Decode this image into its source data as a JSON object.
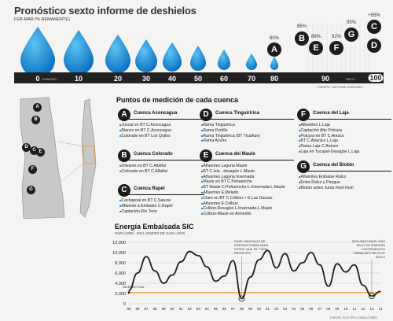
{
  "title": "Pronóstico sexto informe de deshielos",
  "subtitle": "FEB-MAR (% REMANENTE)",
  "scale": {
    "ticks": [
      "0",
      "10",
      "20",
      "30",
      "40",
      "50",
      "60",
      "70",
      "80",
      "90",
      "100"
    ],
    "left_note": "HUMEDO",
    "right_note": "SECO",
    "source": "FUENTE: INFORME EDEE/SEC"
  },
  "forecast_markers": [
    {
      "letter": "A",
      "pct": "80%"
    },
    {
      "letter": "B",
      "pct": "85%"
    },
    {
      "letter": "E",
      "pct": "88%"
    },
    {
      "letter": "F",
      "pct": "92%"
    },
    {
      "letter": "G",
      "pct": "95%"
    },
    {
      "letter": "C",
      "pct": "+95%"
    },
    {
      "letter": "D",
      "pct": ""
    }
  ],
  "map_labels": [
    "A",
    "B",
    "C",
    "D",
    "E",
    "F",
    "G"
  ],
  "points_title": "Puntos de medición de cada cuenca",
  "cuencas": [
    {
      "letter": "A",
      "name": "Cuenca Aconcagua",
      "items": [
        "Juncal en BT C.Aconcagua",
        "Blanco en BT C.Aconcagua",
        "Colorado en BT Los Quilos"
      ]
    },
    {
      "letter": "B",
      "name": "Cuenca Colorado",
      "items": [
        "Olivares en BT C.Alfalfal",
        "Colorado en BT C.Alfalfal"
      ]
    },
    {
      "letter": "C",
      "name": "Cuenca Rapel",
      "items": [
        "Cachapoal en BT C.Sauzal",
        "Afluente a Embalse C.Rapel",
        "Captación Río Teno"
      ]
    },
    {
      "letter": "D",
      "name": "Cuenca Tinguiririca",
      "items": [
        "Rama Tinguiririca",
        "Rama Portillo",
        "Rama Tinguiririca (BT Ticalhue)",
        "Rama Azufre"
      ]
    },
    {
      "letter": "E",
      "name": "Cuenca del Maule",
      "items": [
        "Afluentes Laguna Maule",
        "BT C.Isla - desagüe L.Maule",
        "Afluentes Laguna Invernada",
        "Maule en BT C.Pehuenche",
        "BT Maule C.Pehuenche-L.Invernada-L.Maule",
        "Afluentes E.Melado",
        "Claro en BT C.Colbún + E.Las Garzas",
        "Afluentes E.Colbún",
        "Colbún-Desagüe L.Invernada-L.Maule",
        "Colbún-Maule en Armerillo"
      ]
    },
    {
      "letter": "F",
      "name": "Cuenca del Laja",
      "items": [
        "Afluentes L.Laja",
        "Captación Alto Polcura",
        "Polcura en BT C.Antuco",
        "BT C.Abanico L.Laja",
        "Rama Laja C.Antuco",
        "Laja en Tucapel-Desagüe L.Laja"
      ]
    },
    {
      "letter": "G",
      "name": "Cuenca del Biobío",
      "items": [
        "Afluentes Embalse Ralco",
        "Entre Ralco y Pangue",
        "Biobío antes Junta Huiri Huiri"
      ]
    }
  ],
  "energy": {
    "title": "Energía Embalsada SIC",
    "subtitle": "GWH (1985 - 2014, ENERO DE CADA AÑO)",
    "annotations": {
      "nivel_actual": "NIVEL ACTUAL",
      "min_note": "NIVEL MÁS BAJO DE ENERGÍA EMBALSADA DESDE QUE SE TIENE REGISTRO",
      "second_note": "SEGUNDO NIVEL MÁS BAJO DE ENERGÍA CONTENIDA EN EMBALSES DE ESTE SIGLO",
      "source": "FUENTE: ELECTRO CONSULTORES"
    }
  },
  "chart_data": {
    "type": "line",
    "title": "Energía Embalsada SIC",
    "subtitle": "GWH (1985 - 2014, ENERO DE CADA AÑO)",
    "xlabel": "",
    "ylabel": "",
    "ylim": [
      0,
      12000
    ],
    "yticks": [
      "0",
      "2,000",
      "4,000",
      "6,000",
      "8,000",
      "10,000",
      "12,000"
    ],
    "categories": [
      "85",
      "86",
      "87",
      "88",
      "89",
      "90",
      "91",
      "92",
      "93",
      "94",
      "95",
      "96",
      "97",
      "98",
      "99",
      "00",
      "01",
      "02",
      "03",
      "04",
      "05",
      "06",
      "07",
      "08",
      "09",
      "10",
      "11",
      "12",
      "13",
      "14"
    ],
    "series": [
      {
        "values": [
          2600,
          6000,
          9200,
          6400,
          4000,
          5600,
          8200,
          10200,
          9400,
          7200,
          4400,
          5400,
          8400,
          1000,
          5200,
          8600,
          10400,
          7000,
          9800,
          6400,
          8000,
          10000,
          7600,
          3400,
          7800,
          6200,
          7600,
          3600,
          1500,
          2400
        ]
      },
      {
        "values": [
          2200,
          2200,
          2200,
          2200,
          2200,
          2200,
          2200,
          2200,
          2200,
          2200,
          2200,
          2200,
          2200,
          2200,
          2200,
          2200,
          2200,
          2200,
          2200,
          2200,
          2200,
          2200,
          2200,
          2200,
          2200,
          2200,
          2200,
          2200,
          2200,
          2200
        ]
      }
    ],
    "grid": true,
    "colors": {
      "line": "#1f1f1f",
      "reference": "#f39a1e"
    }
  }
}
